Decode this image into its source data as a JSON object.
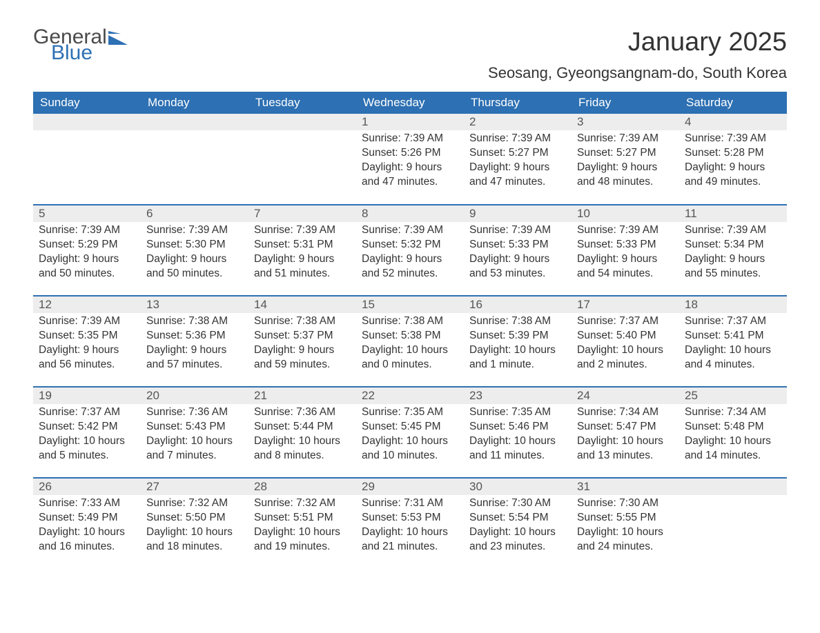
{
  "brand": {
    "word1": "General",
    "word2": "Blue",
    "logo_color": "#2d70b3",
    "text_color": "#4a4a4a"
  },
  "title": "January 2025",
  "subtitle": "Seosang, Gyeongsangnam-do, South Korea",
  "colors": {
    "header_bg": "#2d70b3",
    "header_text": "#ffffff",
    "daynum_bg": "#ededed",
    "row_border": "#2d70b3",
    "body_text": "#333333"
  },
  "day_headers": [
    "Sunday",
    "Monday",
    "Tuesday",
    "Wednesday",
    "Thursday",
    "Friday",
    "Saturday"
  ],
  "weeks": [
    [
      null,
      null,
      null,
      {
        "n": "1",
        "sunrise": "7:39 AM",
        "sunset": "5:26 PM",
        "daylight": "9 hours and 47 minutes."
      },
      {
        "n": "2",
        "sunrise": "7:39 AM",
        "sunset": "5:27 PM",
        "daylight": "9 hours and 47 minutes."
      },
      {
        "n": "3",
        "sunrise": "7:39 AM",
        "sunset": "5:27 PM",
        "daylight": "9 hours and 48 minutes."
      },
      {
        "n": "4",
        "sunrise": "7:39 AM",
        "sunset": "5:28 PM",
        "daylight": "9 hours and 49 minutes."
      }
    ],
    [
      {
        "n": "5",
        "sunrise": "7:39 AM",
        "sunset": "5:29 PM",
        "daylight": "9 hours and 50 minutes."
      },
      {
        "n": "6",
        "sunrise": "7:39 AM",
        "sunset": "5:30 PM",
        "daylight": "9 hours and 50 minutes."
      },
      {
        "n": "7",
        "sunrise": "7:39 AM",
        "sunset": "5:31 PM",
        "daylight": "9 hours and 51 minutes."
      },
      {
        "n": "8",
        "sunrise": "7:39 AM",
        "sunset": "5:32 PM",
        "daylight": "9 hours and 52 minutes."
      },
      {
        "n": "9",
        "sunrise": "7:39 AM",
        "sunset": "5:33 PM",
        "daylight": "9 hours and 53 minutes."
      },
      {
        "n": "10",
        "sunrise": "7:39 AM",
        "sunset": "5:33 PM",
        "daylight": "9 hours and 54 minutes."
      },
      {
        "n": "11",
        "sunrise": "7:39 AM",
        "sunset": "5:34 PM",
        "daylight": "9 hours and 55 minutes."
      }
    ],
    [
      {
        "n": "12",
        "sunrise": "7:39 AM",
        "sunset": "5:35 PM",
        "daylight": "9 hours and 56 minutes."
      },
      {
        "n": "13",
        "sunrise": "7:38 AM",
        "sunset": "5:36 PM",
        "daylight": "9 hours and 57 minutes."
      },
      {
        "n": "14",
        "sunrise": "7:38 AM",
        "sunset": "5:37 PM",
        "daylight": "9 hours and 59 minutes."
      },
      {
        "n": "15",
        "sunrise": "7:38 AM",
        "sunset": "5:38 PM",
        "daylight": "10 hours and 0 minutes."
      },
      {
        "n": "16",
        "sunrise": "7:38 AM",
        "sunset": "5:39 PM",
        "daylight": "10 hours and 1 minute."
      },
      {
        "n": "17",
        "sunrise": "7:37 AM",
        "sunset": "5:40 PM",
        "daylight": "10 hours and 2 minutes."
      },
      {
        "n": "18",
        "sunrise": "7:37 AM",
        "sunset": "5:41 PM",
        "daylight": "10 hours and 4 minutes."
      }
    ],
    [
      {
        "n": "19",
        "sunrise": "7:37 AM",
        "sunset": "5:42 PM",
        "daylight": "10 hours and 5 minutes."
      },
      {
        "n": "20",
        "sunrise": "7:36 AM",
        "sunset": "5:43 PM",
        "daylight": "10 hours and 7 minutes."
      },
      {
        "n": "21",
        "sunrise": "7:36 AM",
        "sunset": "5:44 PM",
        "daylight": "10 hours and 8 minutes."
      },
      {
        "n": "22",
        "sunrise": "7:35 AM",
        "sunset": "5:45 PM",
        "daylight": "10 hours and 10 minutes."
      },
      {
        "n": "23",
        "sunrise": "7:35 AM",
        "sunset": "5:46 PM",
        "daylight": "10 hours and 11 minutes."
      },
      {
        "n": "24",
        "sunrise": "7:34 AM",
        "sunset": "5:47 PM",
        "daylight": "10 hours and 13 minutes."
      },
      {
        "n": "25",
        "sunrise": "7:34 AM",
        "sunset": "5:48 PM",
        "daylight": "10 hours and 14 minutes."
      }
    ],
    [
      {
        "n": "26",
        "sunrise": "7:33 AM",
        "sunset": "5:49 PM",
        "daylight": "10 hours and 16 minutes."
      },
      {
        "n": "27",
        "sunrise": "7:32 AM",
        "sunset": "5:50 PM",
        "daylight": "10 hours and 18 minutes."
      },
      {
        "n": "28",
        "sunrise": "7:32 AM",
        "sunset": "5:51 PM",
        "daylight": "10 hours and 19 minutes."
      },
      {
        "n": "29",
        "sunrise": "7:31 AM",
        "sunset": "5:53 PM",
        "daylight": "10 hours and 21 minutes."
      },
      {
        "n": "30",
        "sunrise": "7:30 AM",
        "sunset": "5:54 PM",
        "daylight": "10 hours and 23 minutes."
      },
      {
        "n": "31",
        "sunrise": "7:30 AM",
        "sunset": "5:55 PM",
        "daylight": "10 hours and 24 minutes."
      },
      null
    ]
  ],
  "labels": {
    "sunrise": "Sunrise:",
    "sunset": "Sunset:",
    "daylight": "Daylight:"
  }
}
